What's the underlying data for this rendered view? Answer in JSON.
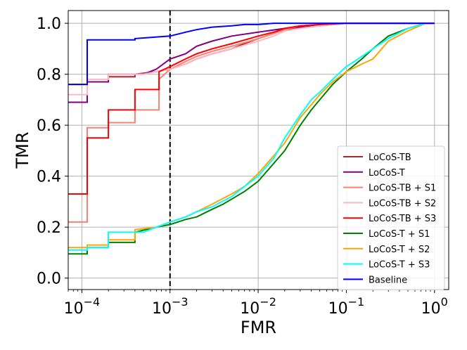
{
  "chart_data": {
    "type": "line",
    "title": "",
    "xlabel": "FMR",
    "ylabel": "TMR",
    "x_scale": "log",
    "xlim": [
      7e-05,
      1.45
    ],
    "ylim": [
      -0.045,
      1.05
    ],
    "grid": true,
    "legend_position": "lower-right",
    "reference_line": {
      "x": 0.001,
      "style": "dashed",
      "color": "#000000"
    },
    "x_ticks": [
      {
        "value": 0.0001,
        "base": "10",
        "exp": "−4"
      },
      {
        "value": 0.001,
        "base": "10",
        "exp": "−3"
      },
      {
        "value": 0.01,
        "base": "10",
        "exp": "−2"
      },
      {
        "value": 0.1,
        "base": "10",
        "exp": "−1"
      },
      {
        "value": 1,
        "base": "10",
        "exp": "0"
      }
    ],
    "y_ticks": [
      {
        "value": 0.0,
        "label": "0.0"
      },
      {
        "value": 0.2,
        "label": "0.2"
      },
      {
        "value": 0.4,
        "label": "0.4"
      },
      {
        "value": 0.6,
        "label": "0.6"
      },
      {
        "value": 0.8,
        "label": "0.8"
      },
      {
        "value": 1.0,
        "label": "1.0"
      }
    ],
    "series": [
      {
        "name": "LoCoS-TB",
        "color": "#a52a2a",
        "x": [
          7e-05,
          0.000115,
          0.000115,
          0.0002,
          0.0002,
          0.0004,
          0.0004,
          0.0007,
          0.001,
          0.0015,
          0.002,
          0.003,
          0.005,
          0.007,
          0.01,
          0.015,
          0.02,
          0.03,
          0.05,
          0.1,
          0.3,
          1
        ],
        "y": [
          0.76,
          0.76,
          0.77,
          0.77,
          0.79,
          0.79,
          0.8,
          0.81,
          0.82,
          0.84,
          0.86,
          0.88,
          0.9,
          0.92,
          0.94,
          0.96,
          0.975,
          0.985,
          0.995,
          1.0,
          1.0,
          1.0
        ]
      },
      {
        "name": "LoCoS-T",
        "color": "#800080",
        "x": [
          7e-05,
          0.000115,
          0.000115,
          0.0002,
          0.0002,
          0.0005,
          0.0007,
          0.001,
          0.0015,
          0.002,
          0.003,
          0.005,
          0.01,
          0.02,
          0.05,
          0.1,
          1
        ],
        "y": [
          0.69,
          0.69,
          0.77,
          0.77,
          0.8,
          0.8,
          0.82,
          0.86,
          0.88,
          0.91,
          0.93,
          0.95,
          0.965,
          0.98,
          0.99,
          1.0,
          1.0
        ]
      },
      {
        "name": "LoCoS-TB + S1",
        "color": "#fa8072",
        "x": [
          7e-05,
          0.000115,
          0.000115,
          0.0002,
          0.0002,
          0.0004,
          0.0004,
          0.00075,
          0.00075,
          0.001,
          0.0015,
          0.002,
          0.003,
          0.005,
          0.008,
          0.01,
          0.015,
          0.02,
          0.03,
          0.05,
          0.1,
          1
        ],
        "y": [
          0.22,
          0.22,
          0.59,
          0.59,
          0.61,
          0.61,
          0.66,
          0.66,
          0.78,
          0.82,
          0.85,
          0.87,
          0.89,
          0.91,
          0.93,
          0.94,
          0.96,
          0.975,
          0.99,
          0.995,
          1.0,
          1.0
        ]
      },
      {
        "name": "LoCoS-TB + S2",
        "color": "#ffb6c1",
        "x": [
          7e-05,
          0.000115,
          0.000115,
          0.0002,
          0.0002,
          0.0005,
          0.0007,
          0.001,
          0.0015,
          0.002,
          0.003,
          0.005,
          0.008,
          0.01,
          0.015,
          0.02,
          0.03,
          0.05,
          0.1,
          1
        ],
        "y": [
          0.72,
          0.72,
          0.78,
          0.78,
          0.8,
          0.8,
          0.81,
          0.82,
          0.84,
          0.86,
          0.88,
          0.9,
          0.92,
          0.93,
          0.95,
          0.97,
          0.98,
          0.99,
          1.0,
          1.0
        ]
      },
      {
        "name": "LoCoS-TB + S3",
        "color": "#ff0000",
        "x": [
          7e-05,
          0.000115,
          0.000115,
          0.0002,
          0.0002,
          0.0004,
          0.0004,
          0.00075,
          0.00075,
          0.001,
          0.0015,
          0.002,
          0.003,
          0.005,
          0.008,
          0.01,
          0.015,
          0.02,
          0.03,
          0.05,
          0.1,
          1
        ],
        "y": [
          0.33,
          0.33,
          0.55,
          0.55,
          0.66,
          0.66,
          0.74,
          0.74,
          0.81,
          0.83,
          0.86,
          0.88,
          0.9,
          0.92,
          0.94,
          0.95,
          0.965,
          0.98,
          0.99,
          0.995,
          1.0,
          1.0
        ]
      },
      {
        "name": "LoCoS-T + S1",
        "color": "#008000",
        "x": [
          7e-05,
          0.000115,
          0.000115,
          0.0002,
          0.0002,
          0.0004,
          0.0004,
          0.0007,
          0.001,
          0.0015,
          0.002,
          0.003,
          0.004,
          0.005,
          0.007,
          0.01,
          0.015,
          0.02,
          0.03,
          0.04,
          0.05,
          0.07,
          0.1,
          0.15,
          0.2,
          0.3,
          0.5,
          0.8
        ],
        "y": [
          0.095,
          0.095,
          0.12,
          0.12,
          0.14,
          0.14,
          0.18,
          0.2,
          0.21,
          0.23,
          0.24,
          0.27,
          0.29,
          0.31,
          0.34,
          0.38,
          0.45,
          0.5,
          0.6,
          0.66,
          0.7,
          0.76,
          0.81,
          0.86,
          0.9,
          0.95,
          0.98,
          1.0
        ]
      },
      {
        "name": "LoCoS-T + S2",
        "color": "#ffa500",
        "x": [
          7e-05,
          0.000115,
          0.000115,
          0.0002,
          0.0002,
          0.0004,
          0.0004,
          0.0007,
          0.001,
          0.0015,
          0.002,
          0.003,
          0.005,
          0.007,
          0.01,
          0.015,
          0.02,
          0.03,
          0.04,
          0.05,
          0.07,
          0.1,
          0.15,
          0.2,
          0.3,
          0.5,
          0.8
        ],
        "y": [
          0.12,
          0.12,
          0.13,
          0.13,
          0.15,
          0.15,
          0.19,
          0.2,
          0.22,
          0.24,
          0.26,
          0.29,
          0.33,
          0.36,
          0.41,
          0.48,
          0.53,
          0.63,
          0.68,
          0.72,
          0.77,
          0.81,
          0.84,
          0.86,
          0.93,
          0.97,
          1.0
        ]
      },
      {
        "name": "LoCoS-T + S3",
        "color": "#00ffff",
        "x": [
          7e-05,
          0.000115,
          0.000115,
          0.0002,
          0.0002,
          0.0005,
          0.0007,
          0.001,
          0.0015,
          0.002,
          0.003,
          0.005,
          0.007,
          0.01,
          0.015,
          0.02,
          0.03,
          0.04,
          0.05,
          0.07,
          0.1,
          0.15,
          0.2,
          0.3,
          0.5,
          0.8
        ],
        "y": [
          0.11,
          0.11,
          0.12,
          0.12,
          0.18,
          0.18,
          0.2,
          0.22,
          0.24,
          0.26,
          0.28,
          0.32,
          0.36,
          0.4,
          0.47,
          0.55,
          0.64,
          0.7,
          0.73,
          0.78,
          0.83,
          0.87,
          0.9,
          0.94,
          0.98,
          1.0
        ]
      },
      {
        "name": "Baseline",
        "color": "#0000ff",
        "x": [
          7e-05,
          0.000115,
          0.000115,
          0.0004,
          0.0004,
          0.001,
          0.0015,
          0.002,
          0.003,
          0.005,
          0.007,
          0.01,
          0.015,
          0.03,
          1
        ],
        "y": [
          0.76,
          0.76,
          0.935,
          0.935,
          0.94,
          0.95,
          0.965,
          0.975,
          0.985,
          0.99,
          0.995,
          0.995,
          1.0,
          1.0,
          1.0
        ]
      }
    ]
  }
}
